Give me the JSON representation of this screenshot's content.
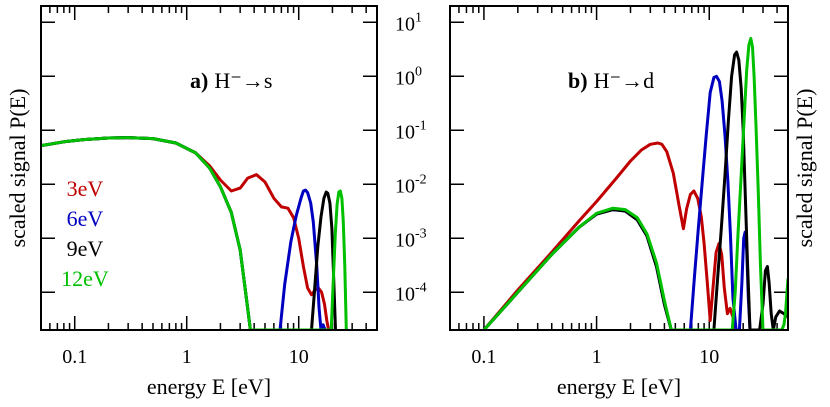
{
  "chart_data": [
    {
      "type": "line",
      "panel_label": "a)",
      "panel_title": "H⁻→s",
      "xlabel": "energy E [eV]",
      "ylabel": "scaled signal P(E)",
      "xscale": "log",
      "yscale": "log",
      "xlim": [
        0.05,
        50
      ],
      "ylim": [
        2e-05,
        20
      ],
      "x_ticks": [
        "0.1",
        "1",
        "10"
      ],
      "legend_placement": "middle-left",
      "series": [
        {
          "name": "3eV",
          "color": "#c00000",
          "x": [
            0.05,
            0.08,
            0.12,
            0.2,
            0.3,
            0.5,
            0.8,
            1.2,
            1.6,
            2.0,
            2.5,
            3.0,
            3.5,
            4.2,
            5.0,
            6.0,
            7.0,
            8.0,
            9.0,
            10.0,
            11.0,
            12.0,
            13.0,
            14.0,
            15.0,
            16.0,
            17.0,
            17.8,
            18.5
          ],
          "y": [
            0.052,
            0.061,
            0.067,
            0.072,
            0.073,
            0.07,
            0.058,
            0.038,
            0.022,
            0.012,
            0.0075,
            0.0085,
            0.013,
            0.015,
            0.011,
            0.0055,
            0.0038,
            0.0036,
            0.0024,
            0.001,
            0.0003,
            0.00012,
            9e-05,
            0.00011,
            0.00012,
            0.0001,
            6e-05,
            3e-05,
            2e-05
          ]
        },
        {
          "name": "6eV",
          "color": "#0000c0",
          "x": [
            0.05,
            0.08,
            0.12,
            0.2,
            0.3,
            0.5,
            0.8,
            1.2,
            1.6,
            2.0,
            2.5,
            3.0,
            3.5,
            3.7,
            6.8,
            7.5,
            8.5,
            9.5,
            10.5,
            11.0,
            11.5,
            12.0,
            12.8,
            13.5,
            14.5,
            15.2,
            15.8,
            16.5,
            17.2
          ],
          "y": [
            0.052,
            0.061,
            0.067,
            0.072,
            0.073,
            0.07,
            0.058,
            0.038,
            0.02,
            0.009,
            0.003,
            0.0006,
            5e-05,
            2e-05,
            2e-05,
            0.00014,
            0.00085,
            0.0026,
            0.0056,
            0.0075,
            0.0078,
            0.007,
            0.0045,
            0.002,
            0.0003,
            5e-05,
            2e-05,
            2.5e-05,
            2e-05
          ]
        },
        {
          "name": "9eV",
          "color": "#000000",
          "x": [
            0.05,
            0.08,
            0.12,
            0.2,
            0.3,
            0.5,
            0.8,
            1.2,
            1.6,
            2.0,
            2.5,
            3.0,
            3.5,
            3.7,
            13.0,
            13.8,
            14.8,
            15.8,
            16.8,
            17.6,
            18.2,
            19.0,
            19.8,
            20.5,
            21.3
          ],
          "y": [
            0.052,
            0.061,
            0.067,
            0.072,
            0.073,
            0.07,
            0.058,
            0.038,
            0.02,
            0.009,
            0.003,
            0.0006,
            5e-05,
            2e-05,
            2e-05,
            0.0001,
            0.0007,
            0.0025,
            0.0055,
            0.0072,
            0.0068,
            0.0045,
            0.0015,
            0.0002,
            2e-05
          ]
        },
        {
          "name": "12eV",
          "color": "#00c000",
          "x": [
            0.05,
            0.08,
            0.12,
            0.2,
            0.3,
            0.5,
            0.8,
            1.2,
            1.6,
            2.0,
            2.5,
            3.0,
            3.5,
            3.7,
            19.5,
            20.3,
            21.2,
            22.0,
            22.8,
            23.5,
            24.3,
            25.0,
            25.8,
            26.6
          ],
          "y": [
            0.052,
            0.061,
            0.067,
            0.072,
            0.073,
            0.07,
            0.058,
            0.038,
            0.02,
            0.009,
            0.003,
            0.0006,
            5e-05,
            2e-05,
            2e-05,
            0.00015,
            0.0012,
            0.0042,
            0.0072,
            0.0075,
            0.0055,
            0.002,
            0.0003,
            2e-05
          ]
        }
      ]
    },
    {
      "type": "line",
      "panel_label": "b)",
      "panel_title": "H⁻→d",
      "xlabel": "energy E [eV]",
      "ylabel": "scaled signal P(E)",
      "xscale": "log",
      "yscale": "log",
      "xlim": [
        0.05,
        50
      ],
      "ylim": [
        2e-05,
        20
      ],
      "x_ticks": [
        "0.1",
        "1",
        "10"
      ],
      "y_ticks": [
        {
          "value": 10,
          "base": "10",
          "exp": "1"
        },
        {
          "value": 1,
          "base": "10",
          "exp": "0"
        },
        {
          "value": 0.1,
          "base": "10",
          "exp": "-1"
        },
        {
          "value": 0.01,
          "base": "10",
          "exp": "-2"
        },
        {
          "value": 0.001,
          "base": "10",
          "exp": "-3"
        },
        {
          "value": 0.0001,
          "base": "10",
          "exp": "-4"
        }
      ],
      "series": [
        {
          "name": "3eV",
          "color": "#c00000",
          "x": [
            0.1,
            0.2,
            0.4,
            0.7,
            1.0,
            1.5,
            2.0,
            2.5,
            3.0,
            3.5,
            3.8,
            4.2,
            4.8,
            5.4,
            5.9,
            6.3,
            6.8,
            7.3,
            7.9,
            8.5,
            9.0,
            9.6,
            10.2,
            10.8,
            11.5,
            12.2,
            12.9,
            13.6,
            14.5,
            15.3,
            16.2,
            17.0
          ],
          "y": [
            2e-05,
            0.00011,
            0.00055,
            0.0021,
            0.0048,
            0.013,
            0.027,
            0.043,
            0.055,
            0.058,
            0.055,
            0.04,
            0.016,
            0.004,
            0.0015,
            0.0035,
            0.0065,
            0.0075,
            0.0055,
            0.0025,
            0.0008,
            0.00015,
            3e-05,
            0.00012,
            0.00055,
            0.0008,
            0.0005,
            0.00012,
            4e-05,
            5e-05,
            3.5e-05,
            2e-05
          ]
        },
        {
          "name": "6eV",
          "color": "#0000c0",
          "x": [
            0.1,
            0.2,
            0.4,
            0.7,
            1.0,
            1.4,
            1.8,
            2.3,
            2.8,
            3.4,
            4.0,
            4.6,
            5.2,
            6.8,
            7.4,
            8.0,
            8.7,
            9.4,
            10.2,
            11.0,
            11.6,
            12.3,
            13.0,
            13.8,
            14.6,
            15.4,
            16.2,
            17.3,
            18.5,
            19.5,
            20.2,
            20.8,
            21.5,
            22.2,
            23.0
          ],
          "y": [
            2e-05,
            0.0001,
            0.0005,
            0.0016,
            0.0028,
            0.0034,
            0.0032,
            0.0022,
            0.0011,
            0.0003,
            6e-05,
            2e-05,
            2e-05,
            2e-05,
            0.0002,
            0.0015,
            0.012,
            0.08,
            0.5,
            0.95,
            1.0,
            0.8,
            0.35,
            0.08,
            0.012,
            0.0012,
            8e-05,
            2e-05,
            2e-05,
            0.00015,
            0.001,
            0.0013,
            0.0006,
            8e-05,
            2e-05
          ]
        },
        {
          "name": "9eV",
          "color": "#000000",
          "x": [
            0.1,
            0.2,
            0.4,
            0.7,
            1.0,
            1.4,
            1.8,
            2.3,
            2.8,
            3.4,
            4.0,
            4.6,
            5.2,
            11.0,
            11.8,
            12.8,
            13.8,
            14.8,
            15.8,
            16.8,
            17.5,
            18.3,
            19.2,
            20.0,
            20.8,
            21.8,
            23.0,
            25.0,
            28.0,
            30.0,
            31.5,
            32.8,
            34.0,
            35.5,
            37.0,
            39.0,
            42.0,
            46.0,
            50.0
          ],
          "y": [
            2e-05,
            0.0001,
            0.0005,
            0.0016,
            0.0028,
            0.0034,
            0.0032,
            0.0022,
            0.0011,
            0.0003,
            6e-05,
            2e-05,
            2e-05,
            2e-05,
            0.00015,
            0.0015,
            0.015,
            0.15,
            1.0,
            2.5,
            2.8,
            2.0,
            0.6,
            0.1,
            0.008,
            0.0004,
            2e-05,
            2e-05,
            2e-05,
            6e-05,
            0.00025,
            0.0003,
            0.00015,
            4e-05,
            2e-05,
            3.5e-05,
            4.5e-05,
            4e-05,
            3.5e-05
          ]
        },
        {
          "name": "12eV",
          "color": "#00c000",
          "x": [
            0.1,
            0.2,
            0.4,
            0.7,
            1.0,
            1.4,
            1.8,
            2.3,
            2.8,
            3.4,
            4.0,
            4.6,
            5.2,
            16.0,
            17.0,
            18.0,
            19.2,
            20.5,
            21.5,
            22.5,
            23.4,
            24.2,
            25.0,
            26.0,
            27.2,
            28.5,
            30.0,
            40.0,
            44.0,
            46.0,
            47.5,
            49.0,
            50.0
          ],
          "y": [
            2e-05,
            0.0001,
            0.0005,
            0.0016,
            0.0029,
            0.0036,
            0.0034,
            0.0024,
            0.0012,
            0.00035,
            7e-05,
            2e-05,
            2e-05,
            2e-05,
            0.0001,
            0.0012,
            0.015,
            0.2,
            1.3,
            3.8,
            5.0,
            3.5,
            1.0,
            0.12,
            0.008,
            0.0003,
            2e-05,
            2e-05,
            2e-05,
            2.5e-05,
            4e-05,
            0.0001,
            0.00018
          ]
        }
      ]
    }
  ]
}
